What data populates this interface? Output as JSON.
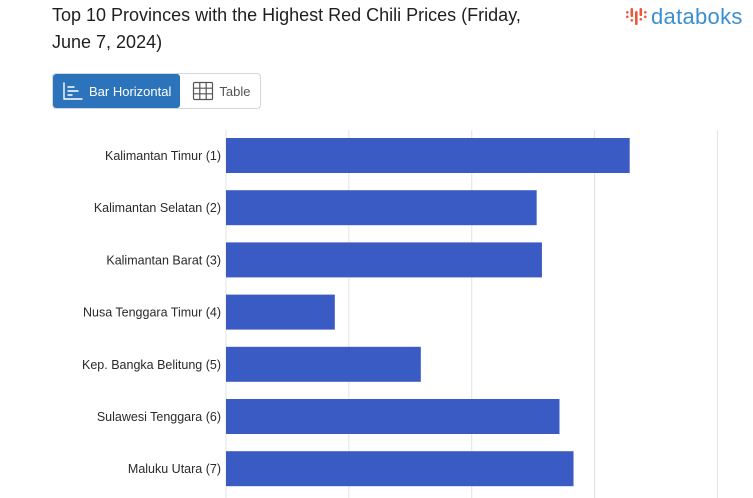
{
  "header": {
    "title_line1": "Top 10 Provinces with the Highest Red Chili Prices (Friday,",
    "title_line2": "June 7, 2024)",
    "logo_text": "databoks",
    "logo_color": "#3a8fd0",
    "logo_icon_color": "#e8583d"
  },
  "view_toggle": {
    "bar_label": "Bar Horizontal",
    "table_label": "Table",
    "active": "bar",
    "active_color": "#2b73ba"
  },
  "chart_data": {
    "type": "bar",
    "orientation": "horizontal",
    "title": "Top 10 Provinces with the Highest Red Chili Prices (Friday, June 7, 2024)",
    "categories": [
      "Kalimantan Timur (1)",
      "Kalimantan Selatan (2)",
      "Kalimantan Barat (3)",
      "Nusa Tenggara Timur (4)",
      "Kep. Bangka Belitung (5)",
      "Sulawesi Tenggara (6)",
      "Maluku Utara (7)"
    ],
    "values": [
      86000,
      80700,
      81000,
      69200,
      74100,
      82000,
      82800
    ],
    "xlim": [
      63000,
      92000
    ],
    "gridlines": [
      70000,
      77000,
      84000,
      91000
    ],
    "grid": true,
    "bar_color": "#3b5bc4",
    "grid_color": "#e3e3e3",
    "x_tick_labels_visible": false
  }
}
